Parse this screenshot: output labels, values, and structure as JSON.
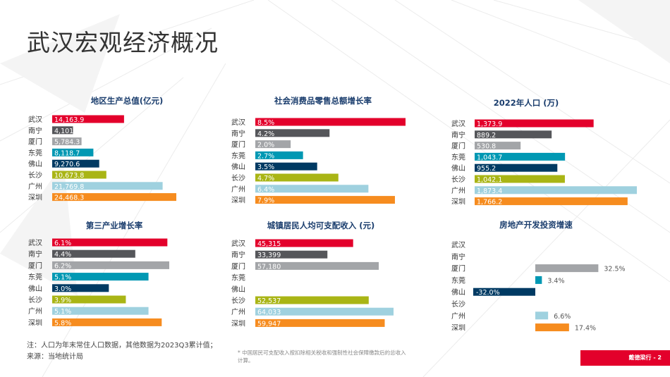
{
  "page": {
    "title": "武汉宏观经济概况",
    "notes": [
      "注：人口为年末常住人口数据，其他数据为2023Q3累计值；",
      "来源：当地统计局"
    ],
    "footnote": "* 中国居民可支配收入按扣除相关税收和强制性社会保障缴款后的总收入计算。",
    "footer": "戴德梁行 - 2"
  },
  "colors": {
    "武汉": "#e3002b",
    "南宁": "#55565a",
    "厦门": "#a3a5a8",
    "东莞": "#0098b3",
    "佛山": "#003a63",
    "长沙": "#a9b515",
    "广州": "#9fd1df",
    "深圳": "#f68c1f"
  },
  "chart_data": [
    {
      "type": "bar",
      "title": "地区生产总值(亿元)",
      "categories": [
        "武汉",
        "南宁",
        "厦门",
        "东莞",
        "佛山",
        "长沙",
        "广州",
        "深圳"
      ],
      "values": [
        14163.9,
        4101,
        5784.3,
        8118.7,
        9270.6,
        10673.8,
        21769.8,
        24468.3
      ],
      "labels": [
        "14,163.9",
        "4,101",
        "5,784.3",
        "8,118.7",
        "9,270.6",
        "10,673.8",
        "21,769.8",
        "24,468.3"
      ],
      "label_color": [
        "#ffffff",
        "#ffffff",
        "#ffffff",
        "#ffffff",
        "#ffffff",
        "#ffffff",
        "#ffffff",
        "#ffffff"
      ]
    },
    {
      "type": "bar",
      "title": "社会消费品零售总额增长率",
      "categories": [
        "武汉",
        "南宁",
        "厦门",
        "东莞",
        "佛山",
        "长沙",
        "广州",
        "深圳"
      ],
      "values": [
        8.5,
        4.2,
        2.0,
        2.7,
        3.5,
        4.7,
        6.4,
        7.9
      ],
      "labels": [
        "8.5%",
        "4.2%",
        "2.0%",
        "2.7%",
        "3.5%",
        "4.7%",
        "6.4%",
        "7.9%"
      ],
      "label_color": [
        "#ffffff",
        "#ffffff",
        "#ffffff",
        "#ffffff",
        "#ffffff",
        "#ffffff",
        "#ffffff",
        "#ffffff"
      ]
    },
    {
      "type": "bar",
      "title": "2022年人口 (万)",
      "categories": [
        "武汉",
        "南宁",
        "厦门",
        "东莞",
        "佛山",
        "长沙",
        "广州",
        "深圳"
      ],
      "values": [
        1373.9,
        889.2,
        530.8,
        1043.7,
        955.2,
        1042.1,
        1873.4,
        1766.2
      ],
      "labels": [
        "1,373.9",
        "889.2",
        "530.8",
        "1,043.7",
        "955.2",
        "1,042.1",
        "1,873.4",
        "1,766.2"
      ],
      "label_color": [
        "#ffffff",
        "#ffffff",
        "#ffffff",
        "#ffffff",
        "#ffffff",
        "#ffffff",
        "#ffffff",
        "#ffffff"
      ]
    },
    {
      "type": "bar",
      "title": "第三产业增长率",
      "categories": [
        "武汉",
        "南宁",
        "厦门",
        "东莞",
        "佛山",
        "长沙",
        "广州",
        "深圳"
      ],
      "values": [
        6.1,
        4.4,
        6.2,
        5.1,
        3.0,
        3.9,
        5.1,
        5.8
      ],
      "labels": [
        "6.1%",
        "4.4%",
        "6.2%",
        "5.1%",
        "3.0%",
        "3.9%",
        "5.1%",
        "5.8%"
      ],
      "label_color": [
        "#ffffff",
        "#ffffff",
        "#ffffff",
        "#ffffff",
        "#ffffff",
        "#ffffff",
        "#ffffff",
        "#ffffff"
      ]
    },
    {
      "type": "bar",
      "title": "城镇居民人均可支配收入 (元)",
      "categories": [
        "武汉",
        "南宁",
        "厦门",
        "东莞",
        "佛山",
        "长沙",
        "广州",
        "深圳"
      ],
      "values": [
        45315,
        33399,
        57180,
        null,
        null,
        52537,
        64033,
        59947
      ],
      "labels": [
        "45,315",
        "33,399",
        "57,180",
        "",
        "",
        "52,537",
        "64,033",
        "59,947"
      ],
      "label_color": [
        "#ffffff",
        "#ffffff",
        "#ffffff",
        "#ffffff",
        "#ffffff",
        "#ffffff",
        "#ffffff",
        "#ffffff"
      ]
    },
    {
      "type": "bar",
      "title": "房地产开发投资增速",
      "categories": [
        "武汉",
        "南宁",
        "厦门",
        "东莞",
        "佛山",
        "长沙",
        "广州",
        "深圳"
      ],
      "values": [
        null,
        null,
        32.5,
        3.4,
        -32.0,
        null,
        6.6,
        17.4
      ],
      "labels": [
        "",
        "",
        "32.5%",
        "3.4%",
        "-32.0%",
        "",
        "6.6%",
        "17.4%"
      ],
      "label_color": [
        "#555555",
        "#555555",
        "#555555",
        "#555555",
        "#ffffff",
        "#555555",
        "#555555",
        "#555555"
      ]
    }
  ]
}
